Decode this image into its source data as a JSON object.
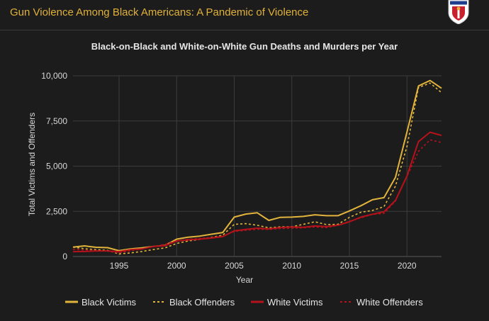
{
  "header": {
    "title": "Gun Violence Among Black Americans: A Pandemic of Violence"
  },
  "colors": {
    "black_series": "#e2b43c",
    "white_series": "#b5121b",
    "grid": "#3c3c3c",
    "background": "#1c1c1c"
  },
  "chart_data": {
    "type": "line",
    "title": "Black-on-Black and White-on-White Gun Deaths and Murders per Year",
    "xlabel": "Year",
    "ylabel": "Total Victims and Offenders",
    "xlim": [
      1991,
      2023
    ],
    "ylim": [
      0,
      10000
    ],
    "xticks": [
      1995,
      2000,
      2005,
      2010,
      2015,
      2020
    ],
    "yticks": [
      0,
      2500,
      5000,
      7500,
      10000
    ],
    "ytick_labels": [
      "0",
      "2,500",
      "5,000",
      "7,500",
      "10,000"
    ],
    "grid": true,
    "legend_position": "bottom",
    "x": [
      1991,
      1992,
      1993,
      1994,
      1995,
      1996,
      1997,
      1998,
      1999,
      2000,
      2001,
      2002,
      2003,
      2004,
      2005,
      2006,
      2007,
      2008,
      2009,
      2010,
      2011,
      2012,
      2013,
      2014,
      2015,
      2016,
      2017,
      2018,
      2019,
      2020,
      2021,
      2022,
      2023
    ],
    "series": [
      {
        "name": "Black Victims",
        "color": "#e2b43c",
        "dash": "solid",
        "values": [
          520,
          590,
          510,
          490,
          320,
          420,
          480,
          560,
          620,
          960,
          1070,
          1130,
          1230,
          1330,
          2180,
          2350,
          2420,
          2000,
          2170,
          2180,
          2220,
          2310,
          2260,
          2260,
          2520,
          2810,
          3140,
          3260,
          4380,
          6900,
          9440,
          9740,
          9310
        ]
      },
      {
        "name": "Black Offenders",
        "color": "#e2b43c",
        "dash": "dotted",
        "values": [
          520,
          430,
          380,
          340,
          140,
          200,
          280,
          390,
          480,
          720,
          860,
          950,
          1060,
          1180,
          1780,
          1820,
          1730,
          1590,
          1640,
          1650,
          1780,
          1920,
          1770,
          1780,
          2170,
          2450,
          2550,
          2760,
          3900,
          6100,
          9350,
          9600,
          9070
        ]
      },
      {
        "name": "White Victims",
        "color": "#b5121b",
        "dash": "solid",
        "values": [
          270,
          280,
          310,
          310,
          270,
          380,
          420,
          560,
          600,
          860,
          920,
          960,
          1020,
          1100,
          1420,
          1500,
          1570,
          1530,
          1600,
          1640,
          1620,
          1690,
          1660,
          1730,
          1920,
          2180,
          2340,
          2480,
          3100,
          4460,
          6360,
          6880,
          6700
        ]
      },
      {
        "name": "White Offenders",
        "color": "#b5121b",
        "dash": "dotted",
        "values": [
          400,
          360,
          330,
          300,
          200,
          320,
          410,
          540,
          680,
          860,
          960,
          1000,
          1050,
          1130,
          1390,
          1450,
          1510,
          1500,
          1550,
          1570,
          1590,
          1640,
          1600,
          1730,
          1950,
          2140,
          2330,
          2390,
          3080,
          4440,
          5820,
          6460,
          6310
        ]
      }
    ]
  }
}
